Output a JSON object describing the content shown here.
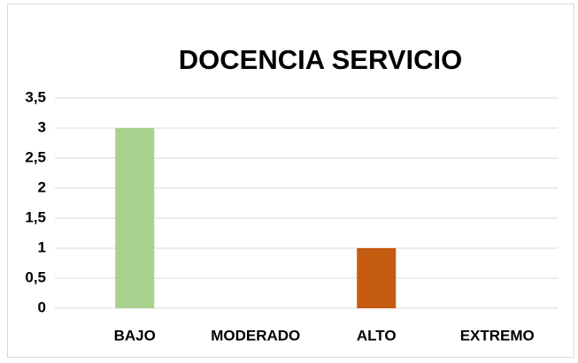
{
  "chart_data": {
    "type": "bar",
    "title": "DOCENCIA SERVICIO",
    "categories": [
      "BAJO",
      "MODERADO",
      "ALTO",
      "EXTREMO"
    ],
    "values": [
      3,
      0,
      1,
      0
    ],
    "colors": [
      "#a9d18e",
      "#a9d18e",
      "#c55a11",
      "#c55a11"
    ],
    "ylim": [
      0,
      3.5
    ],
    "yticks": [
      0,
      {
        "value": 0.5,
        "label": "0,5"
      },
      1,
      {
        "value": 1.5,
        "label": "1,5"
      },
      2,
      {
        "value": 2.5,
        "label": "2,5"
      },
      3,
      {
        "value": 3.5,
        "label": "3,5"
      }
    ],
    "grid": true
  }
}
